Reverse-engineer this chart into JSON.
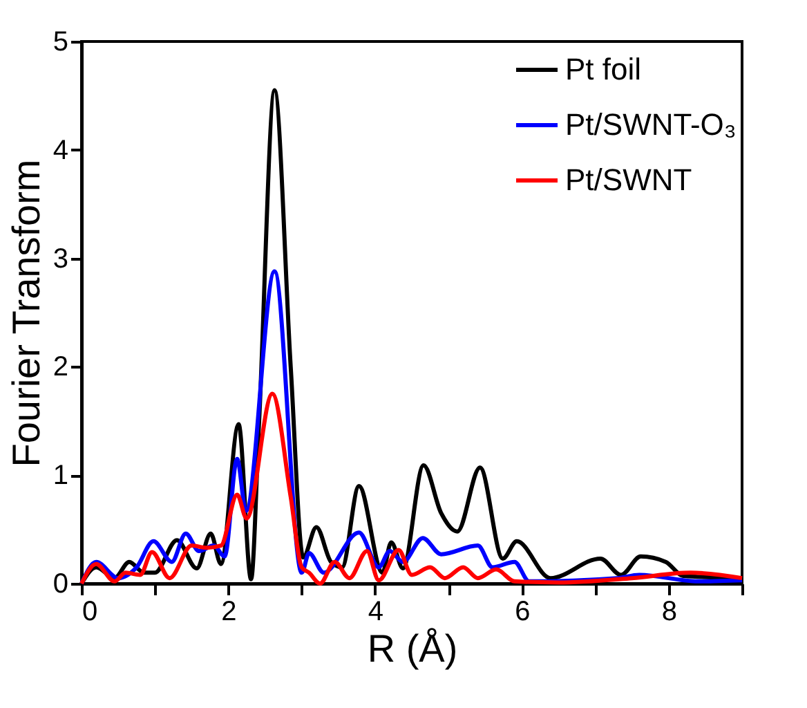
{
  "chart_data": {
    "type": "line",
    "xlabel": "R (Å)",
    "ylabel": "Fourier Transform",
    "xlim": [
      0,
      9
    ],
    "ylim": [
      0,
      5
    ],
    "xticks": [
      0,
      {
        "value": 1,
        "label": null
      },
      2,
      {
        "value": 3,
        "label": null
      },
      4,
      {
        "value": 5,
        "label": null
      },
      6,
      {
        "value": 7,
        "label": null
      },
      8,
      {
        "value": 9,
        "label": null
      }
    ],
    "yticks": [
      0,
      1,
      2,
      3,
      4,
      5
    ],
    "grid": false,
    "legend": "top right",
    "line_style": "solid",
    "marker": "none",
    "series": [
      {
        "name": "Pt foil",
        "color": "#000000",
        "x": [
          0,
          0.2,
          0.45,
          0.65,
          0.85,
          1.0,
          1.3,
          1.57,
          1.76,
          1.9,
          2.14,
          2.31,
          2.42,
          2.63,
          2.85,
          3.02,
          3.2,
          3.4,
          3.55,
          3.78,
          4.1,
          4.22,
          4.38,
          4.66,
          4.9,
          5.12,
          5.43,
          5.74,
          5.93,
          6.39,
          7.07,
          7.35,
          7.62,
          7.96,
          8.2,
          9
        ],
        "values": [
          0,
          0.15,
          0.05,
          0.2,
          0.1,
          0.1,
          0.4,
          0.14,
          0.46,
          0.18,
          1.47,
          0.04,
          1.5,
          4.55,
          2.0,
          0.24,
          0.52,
          0.2,
          0.15,
          0.9,
          0.1,
          0.38,
          0.14,
          1.09,
          0.65,
          0.48,
          1.07,
          0.23,
          0.39,
          0.05,
          0.23,
          0.08,
          0.25,
          0.2,
          0.07,
          0.05
        ]
      },
      {
        "name": "Pt/SWNT-O₃",
        "color": "#0000ff",
        "x": [
          0,
          0.2,
          0.5,
          0.75,
          0.98,
          1.23,
          1.42,
          1.6,
          1.8,
          1.95,
          2.12,
          2.24,
          2.63,
          3.0,
          3.1,
          3.3,
          3.78,
          4.05,
          4.2,
          4.38,
          4.65,
          4.9,
          5.4,
          5.6,
          5.9,
          6.1,
          7.3,
          7.6,
          8.4,
          9
        ],
        "values": [
          0,
          0.2,
          0.05,
          0.15,
          0.39,
          0.2,
          0.46,
          0.3,
          0.35,
          0.25,
          1.15,
          0.67,
          2.88,
          0.1,
          0.28,
          0.1,
          0.47,
          0.15,
          0.3,
          0.2,
          0.42,
          0.27,
          0.35,
          0.15,
          0.2,
          0.02,
          0.05,
          0.08,
          0.02,
          0.03
        ]
      },
      {
        "name": "Pt/SWNT",
        "color": "#ff0000",
        "x": [
          0,
          0.2,
          0.45,
          0.6,
          0.8,
          0.96,
          1.2,
          1.5,
          1.7,
          1.9,
          2.12,
          2.25,
          2.6,
          2.85,
          3.0,
          3.1,
          3.25,
          3.45,
          3.65,
          3.89,
          4.05,
          4.32,
          4.5,
          4.75,
          4.95,
          5.2,
          5.4,
          5.65,
          5.9,
          6.5,
          7.5,
          8.3,
          9
        ],
        "values": [
          0,
          0.18,
          0.02,
          0.1,
          0.08,
          0.29,
          0.05,
          0.35,
          0.33,
          0.35,
          0.82,
          0.6,
          1.75,
          0.8,
          0.15,
          0.1,
          0.0,
          0.2,
          0.05,
          0.3,
          0.03,
          0.31,
          0.08,
          0.15,
          0.05,
          0.15,
          0.05,
          0.13,
          0.02,
          0.01,
          0.05,
          0.1,
          0.05
        ]
      }
    ]
  }
}
